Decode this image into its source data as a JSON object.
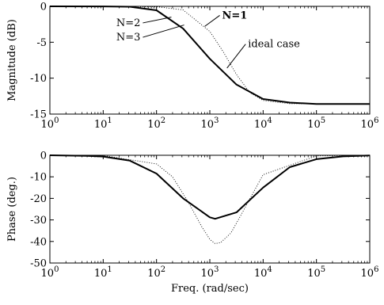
{
  "chart_data": [
    {
      "type": "line",
      "xscale": "log",
      "xlim": [
        1,
        1000000
      ],
      "ylim": [
        -15,
        0
      ],
      "grid": false,
      "ylabel": "Magnitude (dB)",
      "xticks": [
        1,
        10,
        100,
        1000,
        10000,
        100000,
        1000000
      ],
      "xtick_labels": [
        {
          "base": "10",
          "exp": "0"
        },
        {
          "base": "10",
          "exp": "1"
        },
        {
          "base": "10",
          "exp": "2"
        },
        {
          "base": "10",
          "exp": "3"
        },
        {
          "base": "10",
          "exp": "4"
        },
        {
          "base": "10",
          "exp": "5"
        },
        {
          "base": "10",
          "exp": "6"
        }
      ],
      "yticks": [
        0,
        -5,
        -10,
        -15
      ],
      "ytick_labels": [
        "0",
        "-5",
        "-10",
        "-15"
      ],
      "series": [
        {
          "style": "solid",
          "width": 2,
          "x": [
            1,
            10,
            31.6,
            100,
            316,
            1000,
            3162,
            10000,
            31623,
            100000,
            1000000
          ],
          "y": [
            0,
            -0.01,
            -0.06,
            -0.55,
            -3.1,
            -7.3,
            -10.9,
            -12.9,
            -13.4,
            -13.6,
            -13.6
          ]
        },
        {
          "style": "dotted",
          "width": 1,
          "x": [
            1,
            10,
            100,
            316,
            1000,
            1778,
            3162,
            5623,
            10000,
            31623,
            1000000
          ],
          "y": [
            0,
            0,
            -0.05,
            -0.5,
            -3.5,
            -6.3,
            -9.5,
            -12.0,
            -13.1,
            -13.55,
            -13.6
          ]
        }
      ],
      "annotations": [
        {
          "text": "N=1",
          "bold": true,
          "x": 1700,
          "y": -1.7,
          "point_x": 800,
          "point_y": -2.8,
          "anchor": "start"
        },
        {
          "text": "N=2",
          "bold": false,
          "x": 50,
          "y": -2.75,
          "point_x": 190,
          "point_y": -1.5,
          "anchor": "end"
        },
        {
          "text": "N=3",
          "bold": false,
          "x": 50,
          "y": -4.75,
          "point_x": 330,
          "point_y": -2.6,
          "anchor": "end"
        },
        {
          "text": "ideal case",
          "bold": false,
          "x": 5200,
          "y": -5.7,
          "point_x": 2100,
          "point_y": -8.6,
          "anchor": "start"
        }
      ]
    },
    {
      "type": "line",
      "xscale": "log",
      "xlim": [
        1,
        1000000
      ],
      "ylim": [
        -50,
        0
      ],
      "grid": false,
      "xlabel": "Freq. (rad/sec)",
      "ylabel": "Phase (deg.)",
      "xticks": [
        1,
        10,
        100,
        1000,
        10000,
        100000,
        1000000
      ],
      "xtick_labels": [
        {
          "base": "10",
          "exp": "0"
        },
        {
          "base": "10",
          "exp": "1"
        },
        {
          "base": "10",
          "exp": "2"
        },
        {
          "base": "10",
          "exp": "3"
        },
        {
          "base": "10",
          "exp": "4"
        },
        {
          "base": "10",
          "exp": "5"
        },
        {
          "base": "10",
          "exp": "6"
        }
      ],
      "yticks": [
        0,
        -10,
        -20,
        -30,
        -40,
        -50
      ],
      "ytick_labels": [
        "0",
        "-10",
        "-20",
        "-30",
        "-40",
        "-50"
      ],
      "series": [
        {
          "style": "solid",
          "width": 2,
          "x": [
            1,
            5,
            10,
            31.6,
            100,
            316,
            1000,
            1259,
            3162,
            10000,
            31623,
            100000,
            316228,
            1000000
          ],
          "y": [
            0,
            -0.3,
            -0.6,
            -2.5,
            -8.5,
            -20,
            -28.8,
            -29.5,
            -26.5,
            -15,
            -5.5,
            -1.8,
            -0.5,
            -0.1
          ]
        },
        {
          "style": "dotted",
          "width": 1,
          "x": [
            1,
            10,
            100,
            200,
            400,
            700,
            1000,
            1259,
            1600,
            2500,
            4000,
            10000,
            100000,
            1000000
          ],
          "y": [
            0,
            -0.1,
            -4.0,
            -10,
            -22,
            -33,
            -39,
            -41,
            -40.5,
            -36,
            -27,
            -9,
            -0.3,
            0
          ]
        }
      ]
    }
  ]
}
